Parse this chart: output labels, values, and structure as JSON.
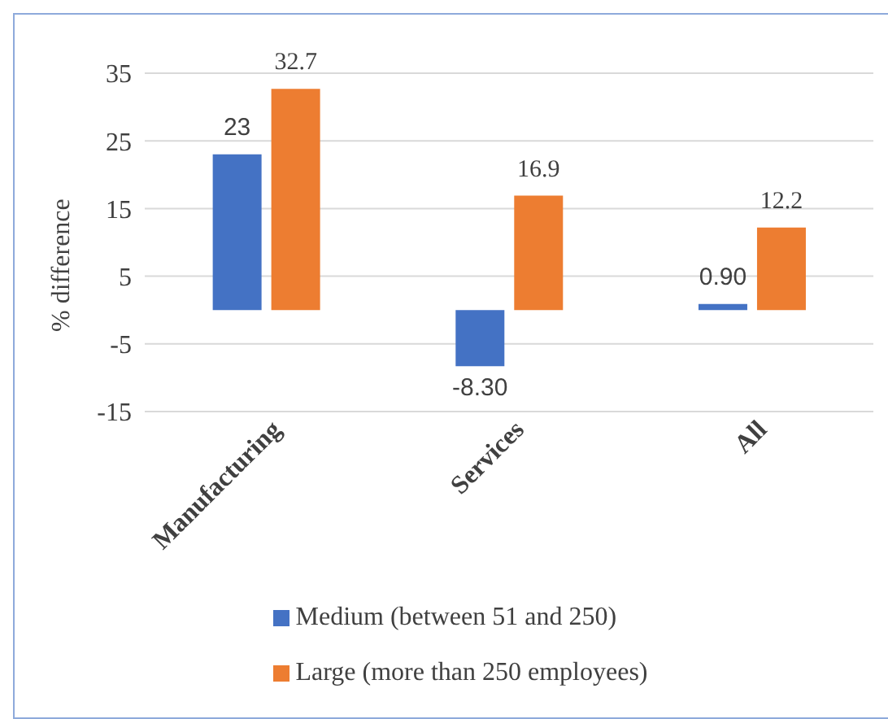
{
  "chart_data": {
    "type": "bar",
    "ylabel": "% difference",
    "categories": [
      "Manufacturing",
      "Services",
      "All"
    ],
    "series": [
      {
        "name": "Medium (between 51 and 250)",
        "color": "#4472c4",
        "values": [
          23,
          -8.3,
          0.9
        ],
        "value_labels": [
          "23",
          "-8.30",
          "0.90"
        ]
      },
      {
        "name": "Large (more than 250 employees)",
        "color": "#ed7d31",
        "values": [
          32.7,
          16.9,
          12.2
        ],
        "value_labels": [
          "32.7",
          "16.9",
          "12.2"
        ]
      }
    ],
    "ylim": [
      -15,
      35
    ],
    "yticks": [
      -15,
      -5,
      5,
      15,
      25,
      35
    ],
    "grid": "y",
    "legend": "bottom"
  }
}
